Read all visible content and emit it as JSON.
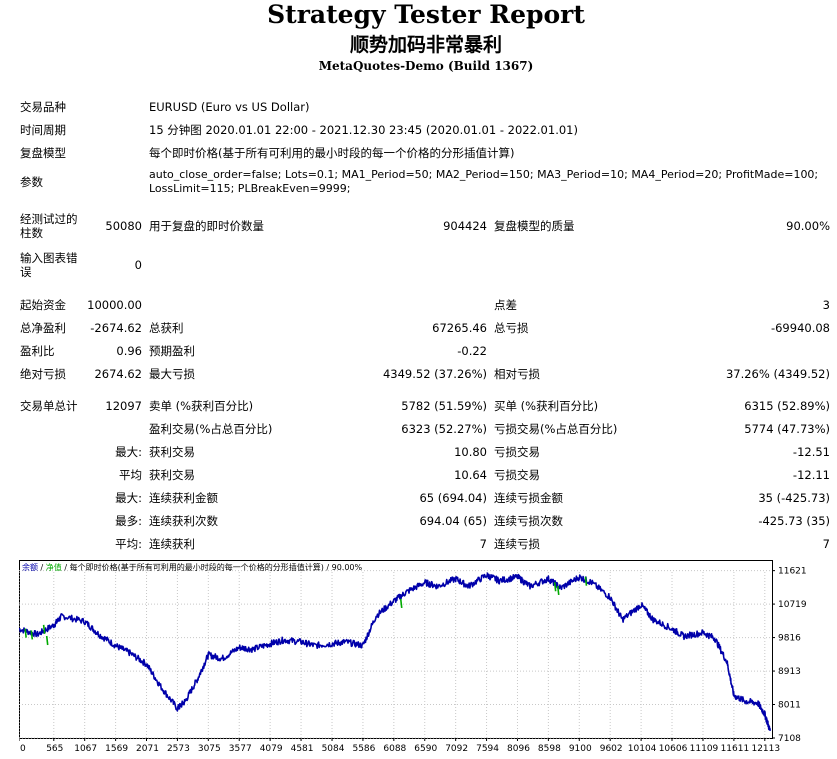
{
  "report": {
    "title": "Strategy Tester Report",
    "subtitle": "顺势加码非常暴利",
    "server": "MetaQuotes-Demo (Build 1367)"
  },
  "settings": {
    "symbol_label": "交易品种",
    "symbol_value": "EURUSD (Euro vs US Dollar)",
    "period_label": "时间周期",
    "period_value": "15 分钟图 2020.01.01 22:00 - 2021.12.30 23:45 (2020.01.01 - 2022.01.01)",
    "model_label": "复盘模型",
    "model_value": "每个即时价格(基于所有可利用的最小时段的每一个价格的分形插值计算)",
    "params_label": "参数",
    "params_value": "auto_close_order=false; Lots=0.1; MA1_Period=50; MA2_Period=150; MA3_Period=10; MA4_Period=20; ProfitMade=100; LossLimit=115; PLBreakEven=9999;"
  },
  "quality": {
    "bars_label": "经测试过的柱数",
    "bars_value": "50080",
    "ticks_label": "用于复盘的即时价数量",
    "ticks_value": "904424",
    "quality_label": "复盘模型的质量",
    "quality_value": "90.00%",
    "errors_label": "输入图表错误",
    "errors_value": "0"
  },
  "results": {
    "deposit_label": "起始资金",
    "deposit_value": "10000.00",
    "spread_label": "点差",
    "spread_value": "3",
    "net_label": "总净盈利",
    "net_value": "-2674.62",
    "gross_profit_label": "总获利",
    "gross_profit_value": "67265.46",
    "gross_loss_label": "总亏损",
    "gross_loss_value": "-69940.08",
    "pf_label": "盈利比",
    "pf_value": "0.96",
    "payoff_label": "预期盈利",
    "payoff_value": "-0.22",
    "abs_dd_label": "绝对亏损",
    "abs_dd_value": "2674.62",
    "max_dd_label": "最大亏损",
    "max_dd_value": "4349.52 (37.26%)",
    "rel_dd_label": "相对亏损",
    "rel_dd_value": "37.26% (4349.52)"
  },
  "trades": {
    "total_label": "交易单总计",
    "total_value": "12097",
    "short_label": "卖单 (%获利百分比)",
    "short_value": "5782 (51.59%)",
    "long_label": "买单 (%获利百分比)",
    "long_value": "6315 (52.89%)",
    "profit_trades_label": "盈利交易(%占总百分比)",
    "profit_trades_value": "6323 (52.27%)",
    "loss_trades_label": "亏损交易(%占总百分比)",
    "loss_trades_value": "5774 (47.73%)",
    "largest_label": "最大:",
    "largest_profit_label": "获利交易",
    "largest_profit_value": "10.80",
    "largest_loss_label": "亏损交易",
    "largest_loss_value": "-12.51",
    "average_label": "平均",
    "avg_profit_label": "获利交易",
    "avg_profit_value": "10.64",
    "avg_loss_label": "亏损交易",
    "avg_loss_value": "-12.11",
    "max_label": "最大:",
    "max_cons_wins_money_label": "连续获利金额",
    "max_cons_wins_money_value": "65 (694.04)",
    "max_cons_losses_money_label": "连续亏损金额",
    "max_cons_losses_money_value": "35 (-425.73)",
    "maximal_label": "最多:",
    "maximal_cons_profit_label": "连续获利次数",
    "maximal_cons_profit_value": "694.04 (65)",
    "maximal_cons_loss_label": "连续亏损次数",
    "maximal_cons_loss_value": "-425.73 (35)",
    "avg2_label": "平均:",
    "avg_cons_wins_label": "连续获利",
    "avg_cons_wins_value": "7",
    "avg_cons_losses_label": "连续亏损",
    "avg_cons_losses_value": "7"
  },
  "chart_data": {
    "type": "line",
    "legend": [
      "余额",
      "净值"
    ],
    "legend_sep": "/",
    "legend_note": "/ 每个即时价格(基于所有可利用的最小时段的每一个价格的分形插值计算) / 90.00%",
    "colors": {
      "balance": "#0000aa",
      "equity": "#00aa00",
      "grid": "#c8c8c8"
    },
    "x_ticks": [
      0,
      565,
      1067,
      1569,
      2071,
      2573,
      3075,
      3577,
      4079,
      4581,
      5084,
      5586,
      6088,
      6590,
      7092,
      7594,
      8096,
      8598,
      9100,
      9602,
      10104,
      10606,
      11109,
      11611,
      12113
    ],
    "y_ticks": [
      11621,
      10719,
      9816,
      8913,
      8011,
      7108
    ],
    "xlim": [
      0,
      12230
    ],
    "ylim": [
      7108,
      11800
    ],
    "x": [
      0,
      300,
      565,
      700,
      1067,
      1300,
      1569,
      1800,
      2071,
      2300,
      2573,
      2700,
      2900,
      3075,
      3300,
      3577,
      3800,
      4079,
      4300,
      4581,
      4800,
      5084,
      5300,
      5586,
      5800,
      6088,
      6300,
      6590,
      6800,
      7092,
      7300,
      7594,
      7800,
      8096,
      8300,
      8598,
      8800,
      9100,
      9300,
      9602,
      9800,
      10104,
      10300,
      10606,
      10800,
      11109,
      11300,
      11500,
      11611,
      11800,
      12000,
      12113,
      12200
    ],
    "balance": [
      10050,
      9900,
      10150,
      10400,
      10250,
      9900,
      9600,
      9400,
      9100,
      8500,
      7900,
      8100,
      8700,
      9350,
      9250,
      9550,
      9500,
      9650,
      9750,
      9700,
      9600,
      9650,
      9700,
      9600,
      10400,
      10800,
      11050,
      11300,
      11200,
      11400,
      11200,
      11500,
      11350,
      11450,
      11200,
      11400,
      11150,
      11450,
      11300,
      10900,
      10300,
      10700,
      10300,
      10050,
      9850,
      9950,
      9800,
      9150,
      8250,
      8100,
      8050,
      7750,
      7300
    ],
    "equity_x": [
      100,
      200,
      400,
      450,
      6200,
      8700,
      8750,
      9200
    ],
    "equity": [
      9950,
      9900,
      10050,
      9750,
      10750,
      11200,
      11100,
      11350
    ]
  }
}
